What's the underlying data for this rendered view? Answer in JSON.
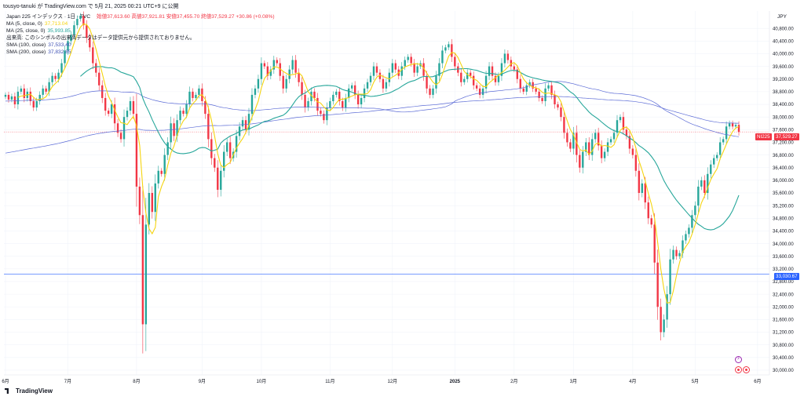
{
  "header": {
    "text": "tousyo-tanuki が TradingView.com で 5月 21, 2025 00:21 UTC+9 に公開",
    "symbol_line": "Japan 225 インデックス · 1日 · TVC",
    "ohlc": "始値37,613.60  高値37,921.81  安値37,455.70  終値37,529.27 +30.86 (+0.08%)"
  },
  "legend": [
    {
      "label": "MA (5, close, 0)",
      "value": "37,713.04",
      "color": "#f5d40f"
    },
    {
      "label": "MA (25, close, 0)",
      "value": "35,993.85",
      "color": "#26a69a"
    },
    {
      "label": "出来高: このシンボルの出来高データはデータ提供元から提供されておりません。",
      "value": "",
      "color": "#131722"
    },
    {
      "label": "SMA (100, close)",
      "value": "37,533.40",
      "color": "#3f51b5"
    },
    {
      "label": "SMA (200, close)",
      "value": "37,832.85",
      "color": "#3f51b5"
    }
  ],
  "currency": "JPY",
  "price_tags": {
    "symbol": "NI225",
    "last": "37,529.27",
    "hline": "33,030.67"
  },
  "footer": {
    "brand": "TradingView"
  },
  "colors": {
    "up": "#26a69a",
    "down": "#f23645",
    "ma5": "#f5d40f",
    "ma25": "#26a69a",
    "sma": "#5b6bd6",
    "hline": "#2962ff"
  },
  "chart_data": {
    "type": "candlestick",
    "ylim": [
      29850,
      41350
    ],
    "yticks": [
      30000,
      30400,
      30800,
      31200,
      31600,
      32000,
      32400,
      32800,
      33200,
      33600,
      34000,
      34400,
      34800,
      35200,
      35600,
      36000,
      36400,
      36800,
      37200,
      37600,
      38000,
      38400,
      38800,
      39200,
      39600,
      40000,
      40400,
      40800
    ],
    "months": [
      {
        "label": "6月",
        "i": 0
      },
      {
        "label": "7月",
        "i": 20
      },
      {
        "label": "8月",
        "i": 42
      },
      {
        "label": "9月",
        "i": 63
      },
      {
        "label": "10月",
        "i": 82
      },
      {
        "label": "11月",
        "i": 104
      },
      {
        "label": "12月",
        "i": 124
      },
      {
        "label": "2025",
        "i": 144
      },
      {
        "label": "2月",
        "i": 163
      },
      {
        "label": "3月",
        "i": 182
      },
      {
        "label": "4月",
        "i": 201
      },
      {
        "label": "5月",
        "i": 221
      },
      {
        "label": "6月",
        "i": 241
      }
    ],
    "hline": 33030.67,
    "close": [
      38700,
      38550,
      38650,
      38400,
      38800,
      38900,
      38600,
      38800,
      38500,
      38300,
      38500,
      38700,
      38900,
      38800,
      39100,
      39300,
      39200,
      39400,
      39700,
      40100,
      40400,
      40600,
      40900,
      41100,
      41200,
      40900,
      40500,
      40200,
      39700,
      39400,
      39000,
      38600,
      38200,
      38100,
      38400,
      37800,
      37500,
      37300,
      38000,
      38200,
      38500,
      38100,
      35800,
      34900,
      31450,
      34600,
      35600,
      35000,
      35900,
      36300,
      36200,
      36800,
      37200,
      37800,
      37400,
      37900,
      38200,
      38100,
      38400,
      38800,
      38600,
      38700,
      38900,
      38500,
      38100,
      37300,
      36700,
      36400,
      35700,
      36300,
      36900,
      37200,
      36700,
      36900,
      37400,
      37700,
      37900,
      37600,
      38100,
      38700,
      38900,
      39200,
      39700,
      39600,
      39300,
      39500,
      39800,
      39700,
      39300,
      38900,
      39200,
      39500,
      39800,
      39400,
      39100,
      38700,
      38300,
      38500,
      38800,
      38600,
      38200,
      38100,
      37900,
      38300,
      38500,
      38700,
      38800,
      38500,
      38300,
      38600,
      38900,
      39000,
      38700,
      38400,
      38600,
      38900,
      39100,
      39300,
      39600,
      39400,
      39200,
      38900,
      39100,
      39400,
      39700,
      39500,
      39300,
      39600,
      39800,
      39900,
      39700,
      39400,
      39600,
      39700,
      39300,
      38900,
      38700,
      38900,
      39300,
      39700,
      40100,
      40200,
      40300,
      39900,
      39600,
      39400,
      39100,
      39200,
      39400,
      39300,
      39000,
      38900,
      38700,
      38900,
      39300,
      39600,
      39300,
      39100,
      39300,
      39700,
      40000,
      39800,
      39600,
      39500,
      39200,
      38900,
      38800,
      39000,
      39100,
      38900,
      38800,
      38600,
      38500,
      38900,
      39000,
      38700,
      38400,
      38300,
      38000,
      37500,
      37200,
      37000,
      37500,
      36800,
      36400,
      36900,
      37200,
      36800,
      37300,
      37500,
      37100,
      36700,
      36900,
      37200,
      37300,
      37500,
      37900,
      38000,
      37600,
      37400,
      37000,
      36800,
      36300,
      35600,
      35900,
      35300,
      34800,
      34600,
      33400,
      32000,
      31200,
      31600,
      32400,
      33500,
      33800,
      33600,
      33700,
      34100,
      34300,
      34500,
      34900,
      35200,
      35800,
      36000,
      35600,
      36200,
      36500,
      36700,
      36800,
      37200,
      37300,
      37700,
      37800,
      37700,
      37750,
      37529
    ]
  }
}
